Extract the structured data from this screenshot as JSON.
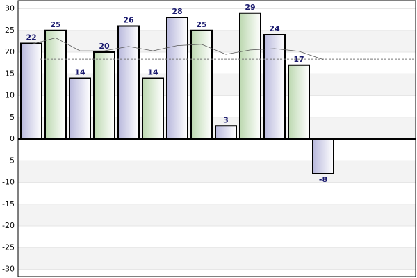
{
  "chart_data": {
    "type": "bar",
    "values": [
      22,
      25,
      14,
      20,
      26,
      14,
      28,
      25,
      3,
      29,
      24,
      17,
      -8
    ],
    "colors": [
      "#d4d4ec",
      "#d4e6cc"
    ],
    "line": {
      "color": "#555555",
      "values": [
        21.8,
        23.3,
        20.3,
        20.3,
        21.3,
        20.3,
        21.5,
        21.8,
        19.5,
        20.5,
        20.8,
        20.2,
        18.3
      ]
    },
    "reference_line": 18.38,
    "ylim": [
      -32,
      32
    ],
    "yticks": [
      -30,
      -25,
      -20,
      -15,
      -10,
      -5,
      0,
      5,
      10,
      15,
      20,
      25,
      30
    ],
    "grid": true
  }
}
